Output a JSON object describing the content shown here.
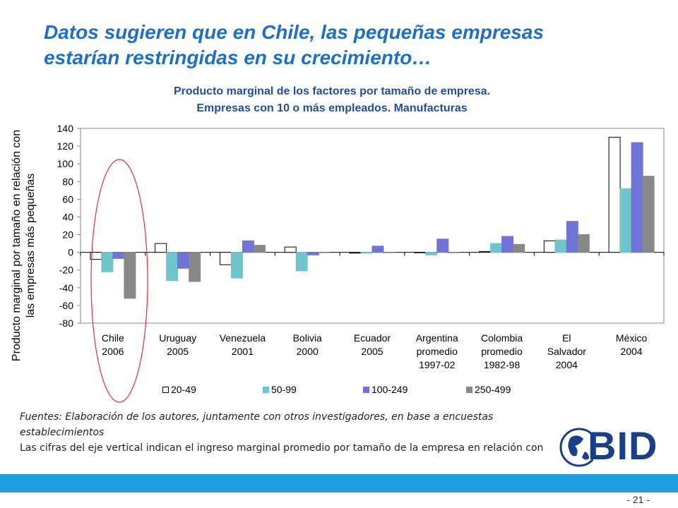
{
  "slide": {
    "title_line1": "Datos sugieren que en Chile, las pequeñas empresas",
    "title_line2": "estarían restringidas en su crecimiento…",
    "page_number": "- 21 -",
    "logo_text": "BID",
    "footnote_line1": "Fuentes:  Elaboración de los autores, juntamente con otros investigadores, en base a encuestas",
    "footnote_line2": "establecimientos",
    "footnote_line3": "Las cifras del eje vertical indican el ingreso marginal promedio por tamaño de la empresa en relación con"
  },
  "colors": {
    "title": "#1f6fc5",
    "chart_title": "#1f4e9a",
    "footer_bar": "#1f9fe0",
    "highlight_ellipse": "#e03030"
  },
  "chart_data": {
    "type": "bar",
    "title_line1": "Producto marginal de los factores por tamaño de empresa.",
    "title_line2": "Empresas con 10 o más empleados. Manufacturas",
    "ylabel_line1": "Producto  marginal por tamaño en relación con",
    "ylabel_line2": "las empresas más pequeñas",
    "ylim": [
      -80,
      140
    ],
    "yticks": [
      -80,
      -60,
      -40,
      -20,
      0,
      20,
      40,
      60,
      80,
      100,
      120,
      140
    ],
    "grid": false,
    "legend_position": "bottom",
    "categories": [
      [
        "Chile",
        "2006"
      ],
      [
        "Uruguay",
        "2005"
      ],
      [
        "Venezuela",
        "2001"
      ],
      [
        "Bolivia",
        "2000"
      ],
      [
        "Ecuador",
        "2005"
      ],
      [
        "Argentina",
        "promedio",
        "1997-02"
      ],
      [
        "Colombia",
        "promedio",
        "1982-98"
      ],
      [
        "El",
        "Salvador",
        "2004"
      ],
      [
        "México",
        "2004"
      ]
    ],
    "series": [
      {
        "name": "20-49",
        "color": "#ffffff",
        "stroke": "#000000",
        "values": [
          -8,
          10,
          -14,
          6,
          -1,
          0,
          1,
          13,
          130
        ]
      },
      {
        "name": "50-99",
        "color": "#6ec6cc",
        "stroke": "#6ec6cc",
        "values": [
          -22,
          -32,
          -29,
          -21,
          -1,
          -3,
          10,
          14,
          72
        ]
      },
      {
        "name": "100-249",
        "color": "#6f74d6",
        "stroke": "#6f74d6",
        "values": [
          -7,
          -18,
          13,
          -3,
          7,
          15,
          18,
          35,
          124
        ]
      },
      {
        "name": "250-499",
        "color": "#888888",
        "stroke": "#888888",
        "values": [
          -52,
          -33,
          8,
          0,
          0,
          0,
          9,
          20,
          86
        ]
      }
    ]
  }
}
